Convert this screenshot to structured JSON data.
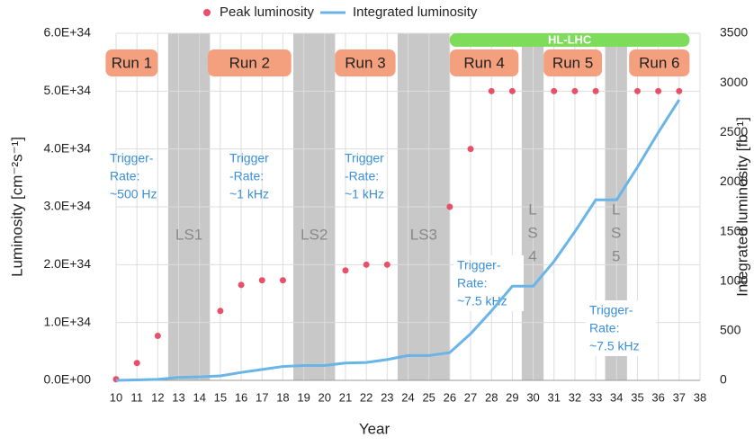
{
  "chart_data": {
    "type": "combo",
    "xlabel": "Year",
    "ylabel": "Luminosity [cm⁻²s⁻¹]",
    "y2label": "Integrated luminosity [fb⁻¹]",
    "xlim": [
      10,
      38
    ],
    "xticks": [
      10,
      11,
      12,
      13,
      14,
      15,
      16,
      17,
      18,
      19,
      20,
      21,
      22,
      23,
      24,
      25,
      26,
      27,
      28,
      29,
      30,
      31,
      32,
      33,
      34,
      35,
      36,
      37,
      38
    ],
    "ylim": [
      0,
      6e+34
    ],
    "yticks": [
      {
        "value": 0,
        "label": "0.0E+00"
      },
      {
        "value": 1e+34,
        "label": "1.0E+34"
      },
      {
        "value": 2e+34,
        "label": "2.0E+34"
      },
      {
        "value": 3e+34,
        "label": "3.0E+34"
      },
      {
        "value": 4e+34,
        "label": "4.0E+34"
      },
      {
        "value": 5e+34,
        "label": "5.0E+34"
      },
      {
        "value": 6e+34,
        "label": "6.0E+34"
      }
    ],
    "y2lim": [
      0,
      3500
    ],
    "y2ticks": [
      0,
      500,
      1000,
      1500,
      2000,
      2500,
      3000,
      3500
    ],
    "grid": true,
    "legend": "top",
    "series": [
      {
        "name": "Peak luminosity",
        "type": "scatter",
        "color": "#e8506a",
        "x": [
          10,
          11,
          12,
          15,
          16,
          17,
          18,
          21,
          22,
          23,
          26,
          27,
          28,
          29,
          31,
          32,
          33,
          35,
          36,
          37
        ],
        "values": [
          2e+32,
          3e+33,
          7.7e+33,
          1.2e+34,
          1.65e+34,
          1.73e+34,
          1.73e+34,
          1.9e+34,
          2e+34,
          2e+34,
          3e+34,
          4e+34,
          5e+34,
          5e+34,
          5e+34,
          5e+34,
          5e+34,
          5e+34,
          5e+34,
          5e+34
        ]
      },
      {
        "name": "Integrated luminosity",
        "type": "line",
        "axis": "y2",
        "color": "#6ab4e8",
        "x": [
          10,
          11,
          12,
          13,
          14,
          15,
          16,
          17,
          18,
          19,
          20,
          21,
          22,
          23,
          24,
          25,
          26,
          27,
          28,
          29,
          30,
          31,
          32,
          33,
          34,
          35,
          36,
          37
        ],
        "values": [
          0,
          5,
          10,
          30,
          35,
          45,
          80,
          110,
          140,
          150,
          150,
          175,
          180,
          210,
          250,
          250,
          280,
          470,
          700,
          950,
          950,
          1200,
          1500,
          1820,
          1820,
          2150,
          2500,
          2830
        ]
      }
    ],
    "shutdowns": [
      {
        "lines": [
          "LS1"
        ],
        "x": [
          12.5,
          14.5
        ]
      },
      {
        "lines": [
          "LS2"
        ],
        "x": [
          18.5,
          20.5
        ]
      },
      {
        "lines": [
          "LS3"
        ],
        "x": [
          23.5,
          26
        ]
      },
      {
        "lines": [
          "L",
          "S",
          "4"
        ],
        "x": [
          29.45,
          30.5
        ]
      },
      {
        "lines": [
          "L",
          "S",
          "5"
        ],
        "x": [
          33.45,
          34.5
        ]
      }
    ],
    "runs": [
      {
        "label": "Run 1",
        "x": [
          9.5,
          12
        ]
      },
      {
        "label": "Run 2",
        "x": [
          14.4,
          18.4
        ]
      },
      {
        "label": "Run 3",
        "x": [
          20.5,
          23.4
        ]
      },
      {
        "label": "Run 4",
        "x": [
          26,
          29.3
        ]
      },
      {
        "label": "Run 5",
        "x": [
          30.5,
          33.3
        ]
      },
      {
        "label": "Run 6",
        "x": [
          34.6,
          37.5
        ]
      }
    ],
    "hl_lhc": {
      "label": "HL-LHC",
      "x": [
        26,
        37.5
      ]
    },
    "annotations": [
      {
        "lines": [
          "Trigger-",
          "Rate:",
          "~500 Hz"
        ]
      },
      {
        "lines": [
          "Trigger",
          "-Rate:",
          "~1 kHz"
        ]
      },
      {
        "lines": [
          "Trigger",
          "-Rate:",
          "~1 kHz"
        ]
      },
      {
        "lines": [
          "Trigger-",
          "Rate:",
          "~7.5 kHz"
        ]
      },
      {
        "lines": [
          "Trigger-",
          "Rate:",
          "~7.5 kHz"
        ]
      }
    ]
  }
}
